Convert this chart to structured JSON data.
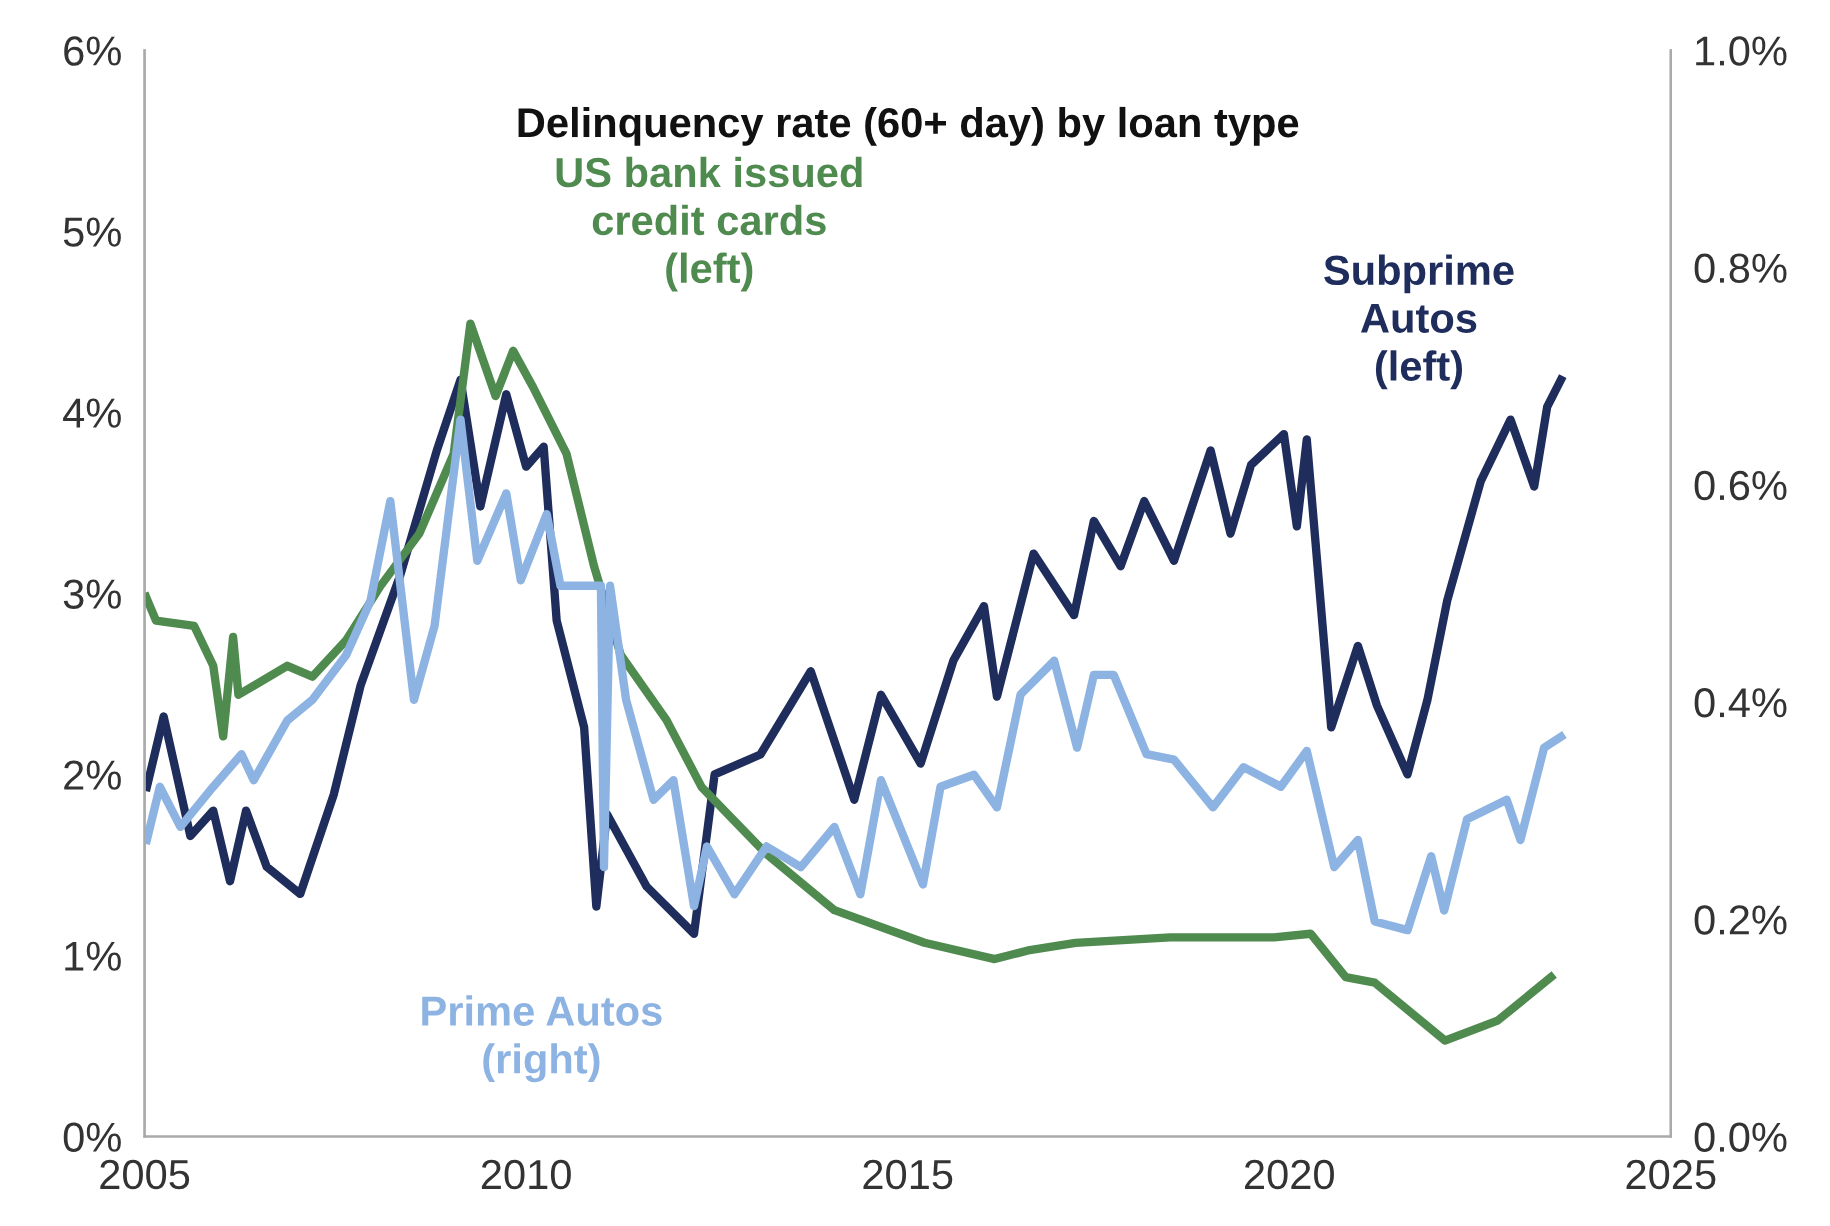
{
  "chart_data": {
    "type": "line",
    "title": "Delinquency rate (60+ day) by loan type",
    "grid": false,
    "legend": false,
    "line_style": "solid",
    "marker": "none",
    "xlim": [
      2005,
      2025
    ],
    "xticks": [
      2005,
      2010,
      2015,
      2020,
      2025
    ],
    "ylim": [
      0,
      6
    ],
    "yticks": [
      {
        "value": 0,
        "label": "0%"
      },
      {
        "value": 1,
        "label": "1%"
      },
      {
        "value": 2,
        "label": "2%"
      },
      {
        "value": 3,
        "label": "3%"
      },
      {
        "value": 4,
        "label": "4%"
      },
      {
        "value": 5,
        "label": "5%"
      },
      {
        "value": 6,
        "label": "6%"
      }
    ],
    "y2lim": [
      0,
      1
    ],
    "y2ticks": [
      {
        "value": 0,
        "label": "0.0%"
      },
      {
        "value": 0.2,
        "label": "0.2%"
      },
      {
        "value": 0.4,
        "label": "0.4%"
      },
      {
        "value": 0.6,
        "label": "0.6%"
      },
      {
        "value": 0.8,
        "label": "0.8%"
      },
      {
        "value": 1,
        "label": "1.0%"
      }
    ],
    "series": [
      {
        "name": "US bank issued\ncredit cards\n(left)",
        "color": "#4f8a4f",
        "x": [
          2005.02,
          2005.15,
          2005.65,
          2005.9,
          2006.03,
          2006.16,
          2006.23,
          2006.87,
          2007.2,
          2007.64,
          2008.09,
          2008.6,
          2009.05,
          2009.27,
          2009.6,
          2009.83,
          2010.09,
          2010.53,
          2010.89,
          2011.24,
          2011.84,
          2012.3,
          2013.15,
          2014.04,
          2015.22,
          2016.14,
          2016.6,
          2017.2,
          2018.44,
          2019.8,
          2020.28,
          2020.74,
          2021.12,
          2022.04,
          2022.73,
          2023.43
        ],
        "values": [
          2.98,
          2.85,
          2.82,
          2.6,
          2.21,
          2.76,
          2.44,
          2.6,
          2.54,
          2.74,
          3.04,
          3.33,
          3.77,
          4.49,
          4.09,
          4.34,
          4.14,
          3.77,
          3.15,
          2.66,
          2.3,
          1.93,
          1.56,
          1.25,
          1.07,
          0.98,
          1.03,
          1.07,
          1.1,
          1.1,
          1.12,
          0.88,
          0.85,
          0.53,
          0.64,
          0.88
        ]
      },
      {
        "name": "Subprime\nAutos\n(left)",
        "color": "#1f2d5c",
        "x": [
          2005.03,
          2005.25,
          2005.6,
          2005.9,
          2006.12,
          2006.33,
          2006.6,
          2007.04,
          2007.48,
          2007.83,
          2008.35,
          2008.83,
          2009.14,
          2009.4,
          2009.74,
          2010.0,
          2010.23,
          2010.4,
          2010.76,
          2010.92,
          2011.06,
          2011.58,
          2012.2,
          2012.47,
          2013.07,
          2013.73,
          2014.3,
          2014.65,
          2015.17,
          2015.6,
          2016.0,
          2016.17,
          2016.65,
          2017.18,
          2017.44,
          2017.79,
          2018.1,
          2018.49,
          2018.97,
          2019.23,
          2019.5,
          2019.93,
          2020.1,
          2020.23,
          2020.55,
          2020.9,
          2021.15,
          2021.55,
          2021.81,
          2022.07,
          2022.51,
          2022.9,
          2023.21,
          2023.38,
          2023.56
        ],
        "values": [
          1.93,
          2.32,
          1.66,
          1.8,
          1.41,
          1.8,
          1.49,
          1.34,
          1.89,
          2.49,
          3.1,
          3.79,
          4.18,
          3.48,
          4.1,
          3.7,
          3.81,
          2.85,
          2.26,
          1.27,
          1.78,
          1.38,
          1.12,
          2.0,
          2.11,
          2.57,
          1.86,
          2.44,
          2.06,
          2.63,
          2.93,
          2.43,
          3.22,
          2.88,
          3.4,
          3.15,
          3.51,
          3.18,
          3.79,
          3.33,
          3.71,
          3.88,
          3.37,
          3.85,
          2.26,
          2.71,
          2.38,
          2.0,
          2.41,
          2.96,
          3.62,
          3.96,
          3.59,
          4.03,
          4.18
        ]
      },
      {
        "name": "Prime Autos\n(right)",
        "color": "#8db3e2",
        "axis": "y2",
        "x": [
          2005.03,
          2005.2,
          2005.47,
          2005.9,
          2006.27,
          2006.43,
          2006.87,
          2007.2,
          2007.64,
          2007.96,
          2008.22,
          2008.53,
          2008.8,
          2009.14,
          2009.36,
          2009.74,
          2009.93,
          2010.27,
          2010.45,
          2010.98,
          2011.02,
          2011.1,
          2011.31,
          2011.67,
          2011.93,
          2012.2,
          2012.37,
          2012.73,
          2013.15,
          2013.6,
          2014.04,
          2014.38,
          2014.65,
          2015.2,
          2015.43,
          2015.87,
          2016.17,
          2016.48,
          2016.92,
          2017.22,
          2017.44,
          2017.7,
          2018.13,
          2018.49,
          2019.0,
          2019.4,
          2019.89,
          2020.23,
          2020.59,
          2020.9,
          2021.12,
          2021.55,
          2021.86,
          2022.03,
          2022.33,
          2022.85,
          2023.03,
          2023.34,
          2023.56
        ],
        "values": [
          0.273,
          0.322,
          0.285,
          0.322,
          0.352,
          0.328,
          0.383,
          0.402,
          0.443,
          0.493,
          0.585,
          0.402,
          0.47,
          0.66,
          0.53,
          0.592,
          0.512,
          0.573,
          0.507,
          0.507,
          0.248,
          0.507,
          0.402,
          0.31,
          0.328,
          0.212,
          0.267,
          0.223,
          0.267,
          0.248,
          0.285,
          0.223,
          0.328,
          0.232,
          0.322,
          0.333,
          0.303,
          0.407,
          0.438,
          0.358,
          0.425,
          0.425,
          0.352,
          0.347,
          0.303,
          0.34,
          0.322,
          0.355,
          0.248,
          0.273,
          0.198,
          0.19,
          0.258,
          0.208,
          0.292,
          0.31,
          0.273,
          0.358,
          0.368
        ]
      }
    ]
  }
}
